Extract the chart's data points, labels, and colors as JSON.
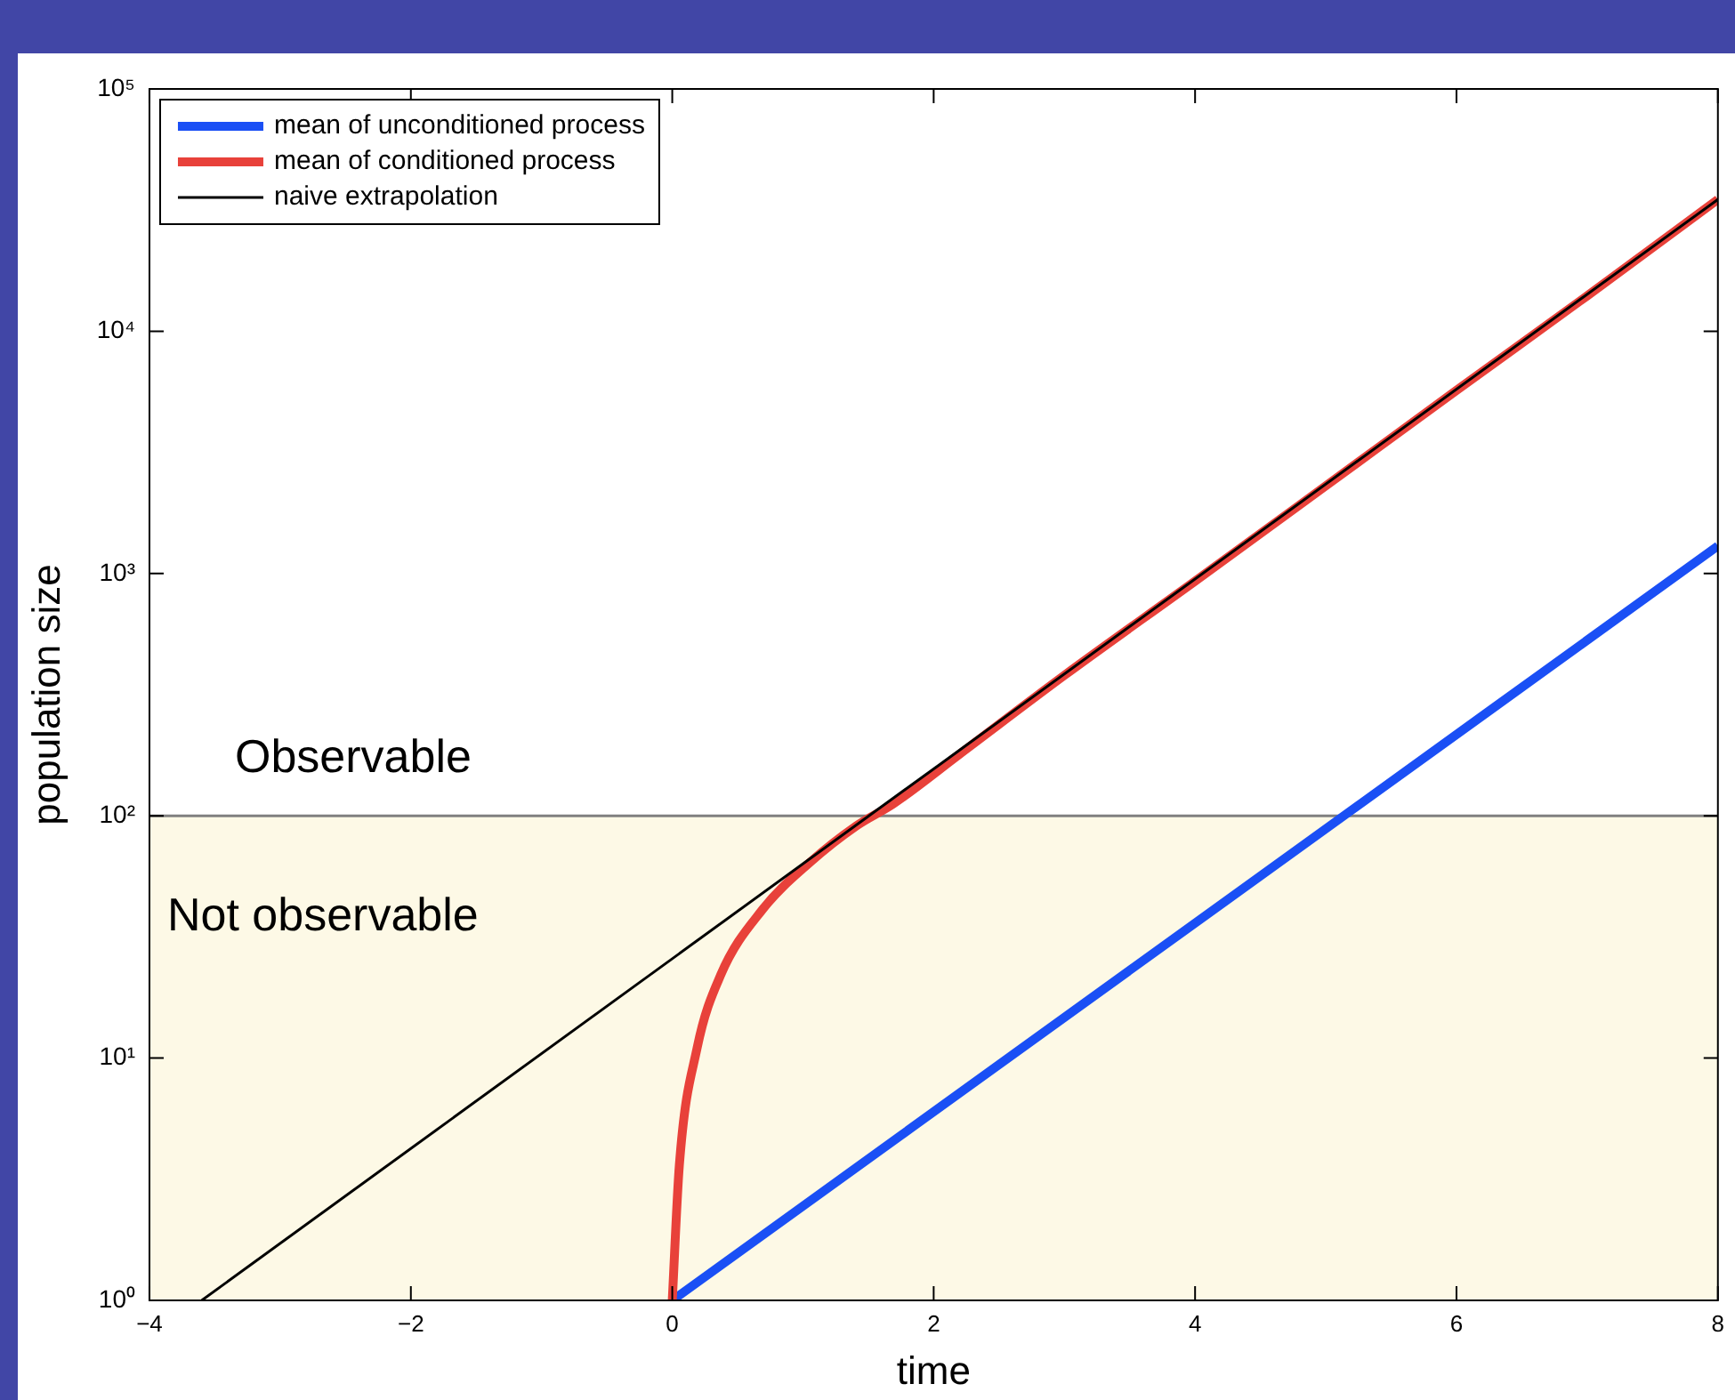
{
  "chart_data": {
    "type": "line",
    "xlabel": "time",
    "ylabel": "population size",
    "log": "y",
    "grid": false,
    "legend": "top left",
    "marker": "none",
    "line_style": "solid",
    "xlim": [
      -4,
      8
    ],
    "xticks": [
      {
        "value": -4,
        "label": "−4"
      },
      {
        "value": -2,
        "label": "−2"
      },
      0,
      2,
      4,
      6,
      8
    ],
    "ylim": [
      1,
      100000
    ],
    "yticks": [
      {
        "value": 1,
        "label": "10⁰"
      },
      {
        "value": 10,
        "label": "10¹"
      },
      {
        "value": 100,
        "label": "10²"
      },
      {
        "value": 1000,
        "label": "10³"
      },
      {
        "value": 10000,
        "label": "10⁴"
      },
      {
        "value": 100000,
        "label": "10⁵"
      }
    ],
    "bands": [
      {
        "axis": "y",
        "from": 1,
        "to": 100,
        "color": "#fdf9e6"
      }
    ],
    "ref_lines": [
      {
        "axis": "y",
        "value": 100,
        "color": "#808080"
      }
    ],
    "annotations": [
      "Observable",
      "Not observable"
    ],
    "series": [
      {
        "name": "mean of unconditioned process",
        "color": "#1a4ff5",
        "x": [
          0,
          8
        ],
        "values": [
          1,
          1300
        ]
      },
      {
        "name": "mean of conditioned process",
        "color": "#e8413a",
        "x": [
          0,
          0.054,
          0.19,
          0.37,
          0.69,
          1.05,
          1.41,
          1.69,
          2.2,
          3,
          4,
          5,
          6,
          7,
          8
        ],
        "values": [
          1,
          3.6,
          11,
          22,
          41,
          64,
          91,
          112,
          180,
          380,
          930,
          2300,
          5700,
          14000,
          35000
        ]
      },
      {
        "name": "naive extrapolation",
        "color": "#000000",
        "x": [
          -3.6,
          8
        ],
        "values": [
          1,
          35000
        ]
      }
    ]
  }
}
